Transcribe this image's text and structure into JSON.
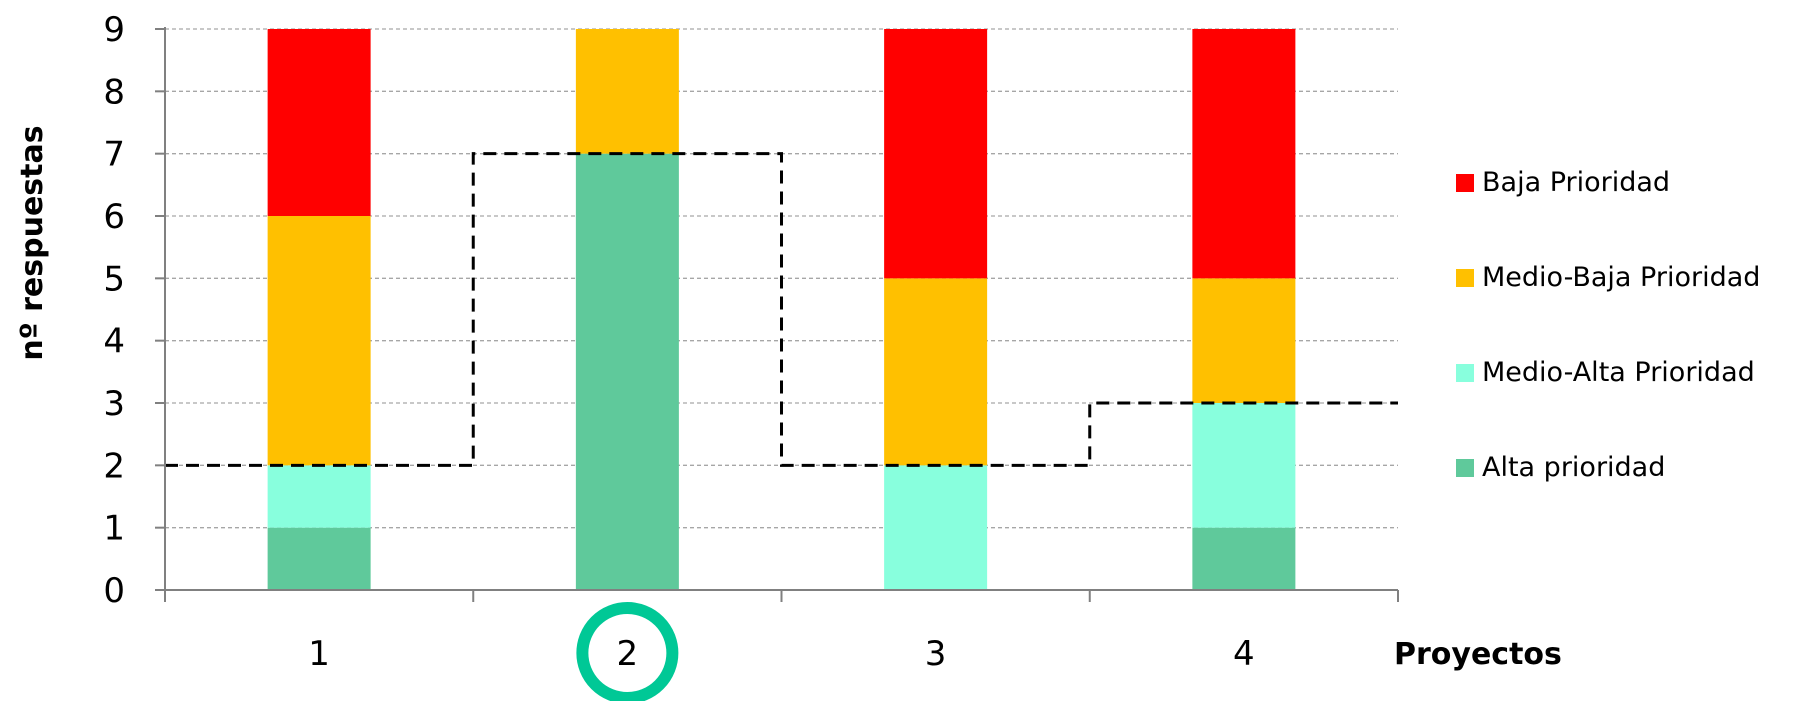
{
  "chart_data": {
    "type": "bar",
    "stacked": true,
    "categories": [
      "1",
      "2",
      "3",
      "4"
    ],
    "series": [
      {
        "name": "Alta prioridad",
        "values": [
          1,
          7,
          0,
          1
        ],
        "color": "#5FC99B"
      },
      {
        "name": "Medio-Alta Prioridad",
        "values": [
          1,
          0,
          2,
          2
        ],
        "color": "#88FFDD"
      },
      {
        "name": "Medio-Baja Prioridad",
        "values": [
          4,
          2,
          3,
          2
        ],
        "color": "#FFC000"
      },
      {
        "name": "Baja Prioridad",
        "values": [
          3,
          0,
          4,
          4
        ],
        "color": "#FF0000"
      }
    ],
    "threshold_line": {
      "style": "dashed",
      "values": [
        2,
        7,
        2,
        3
      ]
    },
    "highlighted_category": "2",
    "highlight_color": "#00C896",
    "title": "",
    "xlabel": "Proyectos",
    "ylabel": "nº respuestas",
    "ylim": [
      0,
      9
    ],
    "yticks": [
      0,
      1,
      2,
      3,
      4,
      5,
      6,
      7,
      8,
      9
    ],
    "grid": true,
    "legend": {
      "placement": "right",
      "order": [
        "Baja Prioridad",
        "Medio-Baja Prioridad",
        "Medio-Alta Prioridad",
        "Alta prioridad"
      ]
    }
  }
}
